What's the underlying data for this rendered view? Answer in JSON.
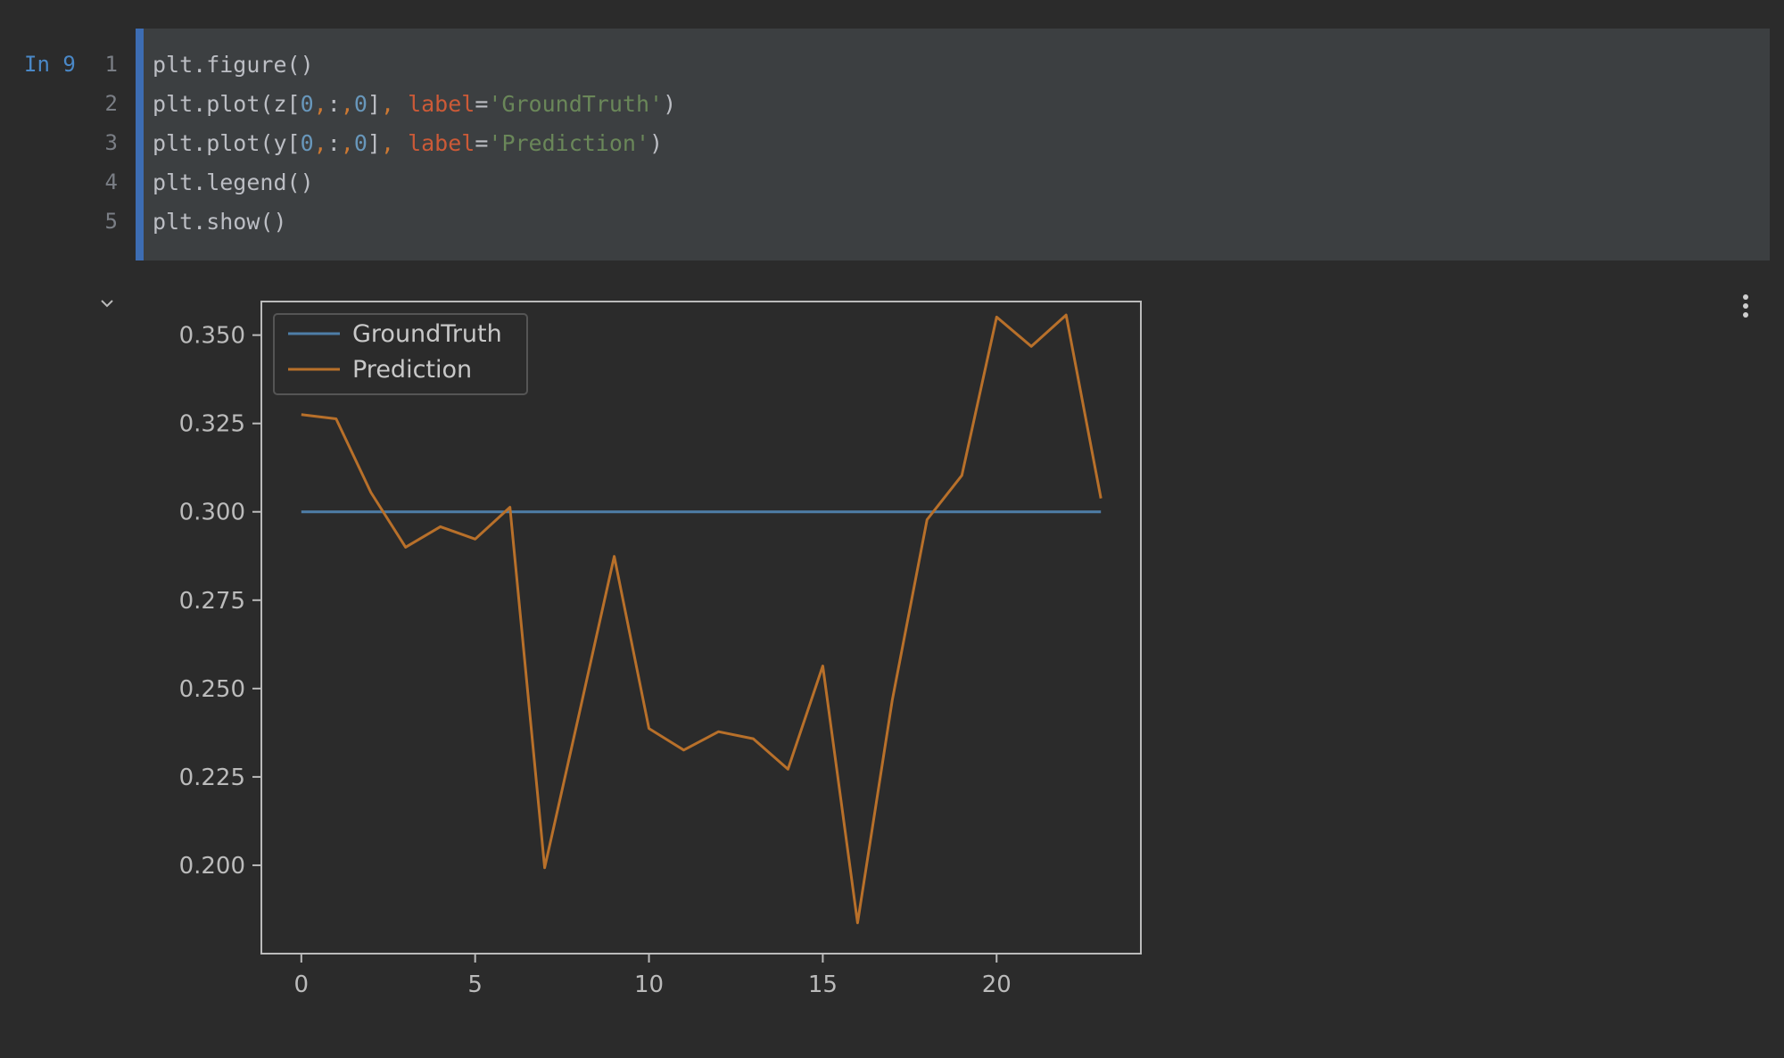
{
  "cell": {
    "prompt": "In 9",
    "line_numbers": [
      "1",
      "2",
      "3",
      "4",
      "5"
    ],
    "lines": [
      [
        {
          "t": "plain",
          "v": "plt.figure()"
        }
      ],
      [
        {
          "t": "plain",
          "v": "plt.plot(z["
        },
        {
          "t": "num",
          "v": "0"
        },
        {
          "t": "punc",
          "v": ","
        },
        {
          "t": "plain",
          "v": ":"
        },
        {
          "t": "punc",
          "v": ","
        },
        {
          "t": "num",
          "v": "0"
        },
        {
          "t": "plain",
          "v": "]"
        },
        {
          "t": "punc",
          "v": ", "
        },
        {
          "t": "kw",
          "v": "label"
        },
        {
          "t": "plain",
          "v": "="
        },
        {
          "t": "str",
          "v": "'GroundTruth'"
        },
        {
          "t": "plain",
          "v": ")"
        }
      ],
      [
        {
          "t": "plain",
          "v": "plt.plot(y["
        },
        {
          "t": "num",
          "v": "0"
        },
        {
          "t": "punc",
          "v": ","
        },
        {
          "t": "plain",
          "v": ":"
        },
        {
          "t": "punc",
          "v": ","
        },
        {
          "t": "num",
          "v": "0"
        },
        {
          "t": "plain",
          "v": "]"
        },
        {
          "t": "punc",
          "v": ", "
        },
        {
          "t": "kw",
          "v": "label"
        },
        {
          "t": "plain",
          "v": "="
        },
        {
          "t": "str",
          "v": "'Prediction'"
        },
        {
          "t": "plain",
          "v": ")"
        }
      ],
      [
        {
          "t": "plain",
          "v": "plt.legend()"
        }
      ],
      [
        {
          "t": "plain",
          "v": "plt.show()"
        }
      ]
    ]
  },
  "output": {
    "collapse_icon": "chevron-down-icon",
    "menu_icon": "more-vertical-icon"
  },
  "chart_data": {
    "type": "line",
    "title": "",
    "xlabel": "",
    "ylabel": "",
    "xlim": [
      -1.15,
      24.15
    ],
    "ylim": [
      0.175,
      0.3595
    ],
    "xticks": [
      0,
      5,
      10,
      15,
      20
    ],
    "yticks": [
      0.2,
      0.225,
      0.25,
      0.275,
      0.3,
      0.325,
      0.35
    ],
    "ytick_labels": [
      "0.200",
      "0.225",
      "0.250",
      "0.275",
      "0.300",
      "0.325",
      "0.350"
    ],
    "xtick_labels": [
      "0",
      "5",
      "10",
      "15",
      "20"
    ],
    "grid": false,
    "legend": "upper left",
    "colors": {
      "background": "#2b2b2b",
      "axes_edge": "#bbbbbb",
      "tick": "#bbbbbb",
      "legend_edge": "#555555"
    },
    "x": [
      0,
      1,
      2,
      3,
      4,
      5,
      6,
      7,
      8,
      9,
      10,
      11,
      12,
      13,
      14,
      15,
      16,
      17,
      18,
      19,
      20,
      21,
      22,
      23
    ],
    "series": [
      {
        "name": "GroundTruth",
        "color": "#4e7ea8",
        "values": [
          0.3,
          0.3,
          0.3,
          0.3,
          0.3,
          0.3,
          0.3,
          0.3,
          0.3,
          0.3,
          0.3,
          0.3,
          0.3,
          0.3,
          0.3,
          0.3,
          0.3,
          0.3,
          0.3,
          0.3,
          0.3,
          0.3,
          0.3,
          0.3
        ]
      },
      {
        "name": "Prediction",
        "color": "#b8702a",
        "values": [
          0.3275,
          0.3263,
          0.3055,
          0.29,
          0.2958,
          0.2923,
          0.3013,
          0.1993,
          0.2432,
          0.2874,
          0.2387,
          0.2326,
          0.2378,
          0.2358,
          0.2272,
          0.2564,
          0.1837,
          0.2467,
          0.2978,
          0.3103,
          0.3551,
          0.3468,
          0.3557,
          0.3038
        ]
      }
    ]
  }
}
